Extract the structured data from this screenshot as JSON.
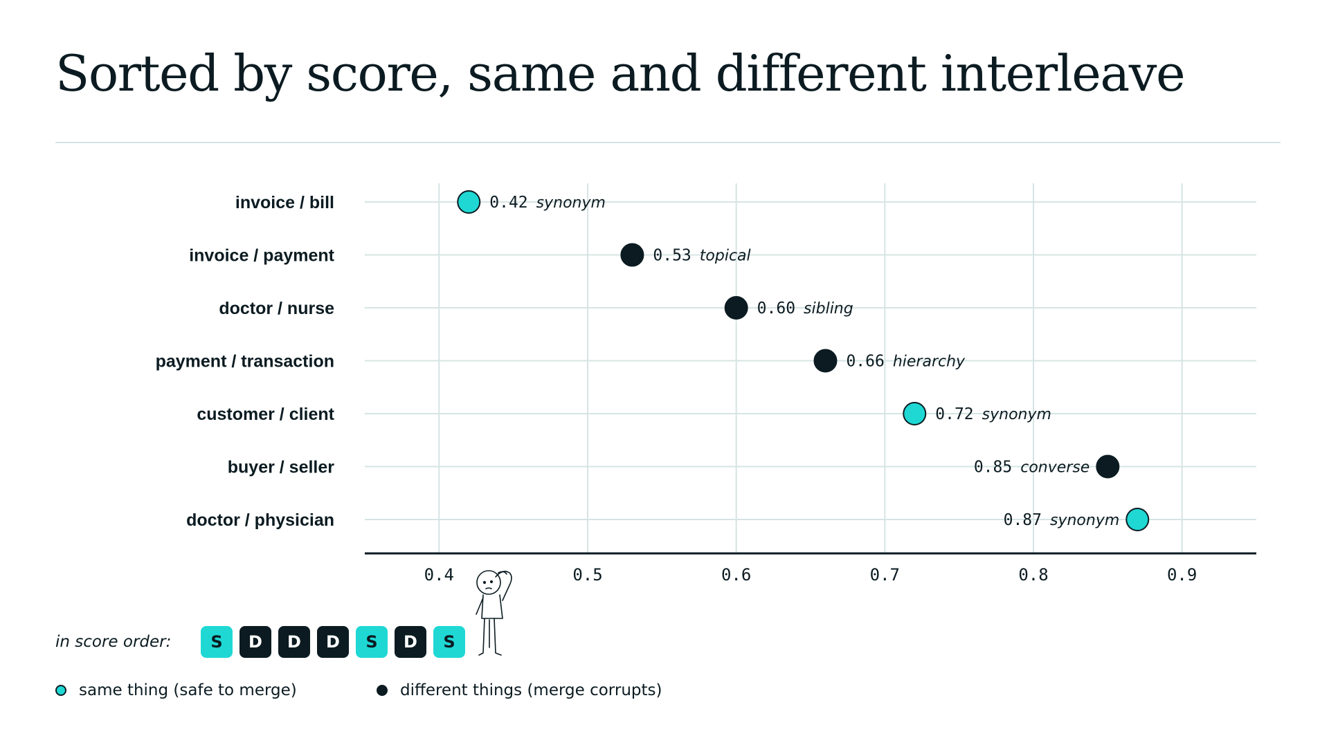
{
  "title": "Sorted by score, same and different interleave",
  "colors": {
    "same": "#1fd8d4",
    "different": "#0b1b21",
    "grid": "#d6e4e3",
    "ink": "#0b1b21"
  },
  "chart_data": {
    "type": "scatter",
    "title": "Sorted by score, same and different interleave",
    "xlabel": "",
    "ylabel": "",
    "xlim": [
      0.35,
      0.95
    ],
    "xticks": [
      "0.4",
      "0.5",
      "0.6",
      "0.7",
      "0.8",
      "0.9"
    ],
    "grid": true,
    "points": [
      {
        "pair": "invoice / bill",
        "score": 0.42,
        "score_label": "0.42",
        "relation": "synonym",
        "class": "same"
      },
      {
        "pair": "invoice / payment",
        "score": 0.53,
        "score_label": "0.53",
        "relation": "topical",
        "class": "different"
      },
      {
        "pair": "doctor / nurse",
        "score": 0.6,
        "score_label": "0.60",
        "relation": "sibling",
        "class": "different"
      },
      {
        "pair": "payment / transaction",
        "score": 0.66,
        "score_label": "0.66",
        "relation": "hierarchy",
        "class": "different"
      },
      {
        "pair": "customer / client",
        "score": 0.72,
        "score_label": "0.72",
        "relation": "synonym",
        "class": "same"
      },
      {
        "pair": "buyer / seller",
        "score": 0.85,
        "score_label": "0.85",
        "relation": "converse",
        "class": "different"
      },
      {
        "pair": "doctor / physician",
        "score": 0.87,
        "score_label": "0.87",
        "relation": "synonym",
        "class": "same"
      }
    ]
  },
  "score_order": {
    "caption": "in score order:",
    "chips": [
      {
        "letter": "S",
        "class": "same"
      },
      {
        "letter": "D",
        "class": "different"
      },
      {
        "letter": "D",
        "class": "different"
      },
      {
        "letter": "D",
        "class": "different"
      },
      {
        "letter": "S",
        "class": "same"
      },
      {
        "letter": "D",
        "class": "different"
      },
      {
        "letter": "S",
        "class": "same"
      }
    ]
  },
  "legend": {
    "same": "same thing (safe to merge)",
    "different": "different things (merge corrupts)"
  }
}
